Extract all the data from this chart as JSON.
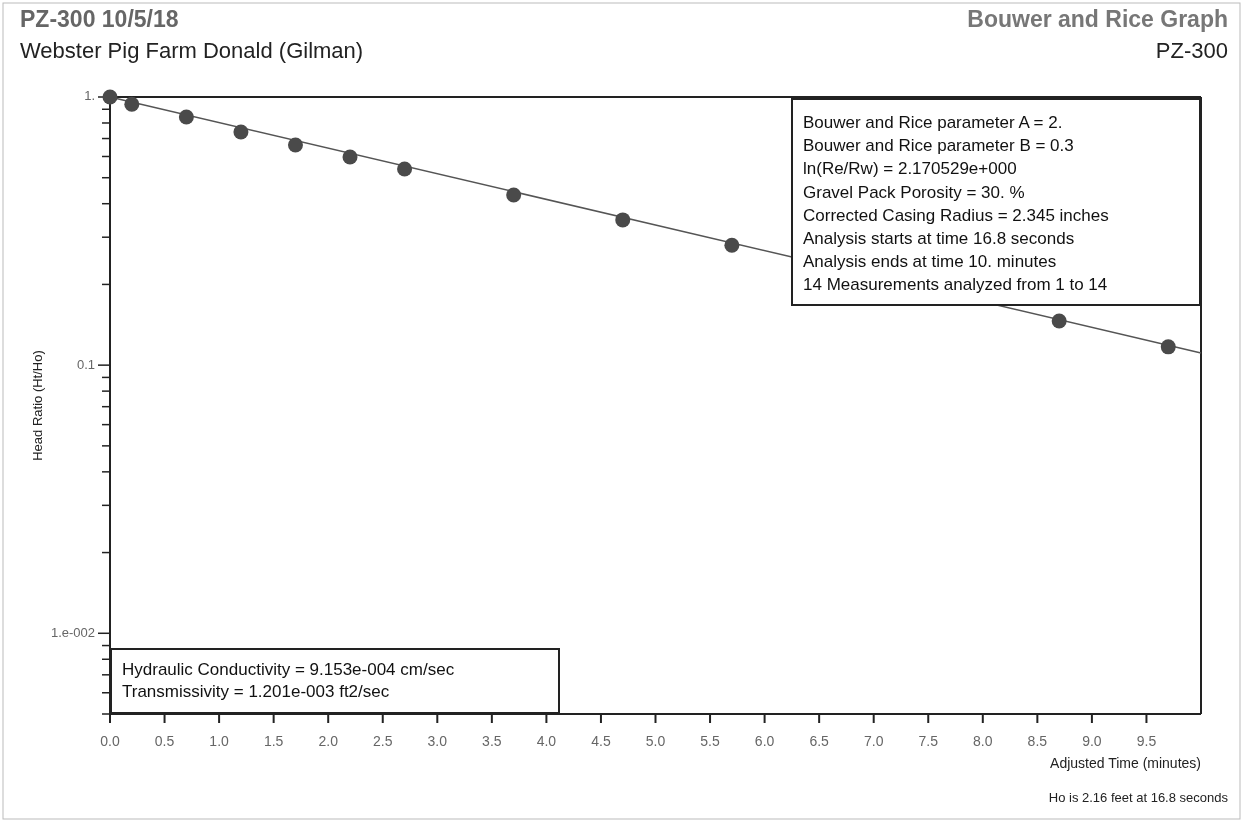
{
  "chart_data": {
    "type": "scatter",
    "title": "PZ-300 10/5/18",
    "subtitle": "Webster Pig Farm Donald (Gilman)",
    "xlabel": "Adjusted Time (minutes)",
    "ylabel": "Head Ratio (Ht/Ho)",
    "annotations": [
      "Bouwer and Rice Graph",
      "PZ-300",
      "Bouwer and Rice parameter A = 2.",
      "Bouwer and Rice parameter B = 0.3",
      "ln(Re/Rw) = 2.170529e+000",
      "Gravel Pack Porosity = 30. %",
      "Corrected Casing Radius = 2.345 inches",
      "Analysis starts at time 16.8 seconds",
      "Analysis ends at time 10. minutes",
      "14 Measurements analyzed from 1 to 14",
      "Hydraulic Conductivity = 9.153e-004 cm/sec",
      "Transmissivity = 1.201e-003 ft2/sec",
      "Ho is 2.16 feet at 16.8 seconds"
    ],
    "series": [
      {
        "color": "#4a4a4a",
        "marker": "circle",
        "x": [
          0,
          0.2,
          0.7,
          1.2,
          1.7,
          2.2,
          2.7,
          3.7,
          4.7,
          5.7,
          8.7,
          9.7
        ],
        "values": [
          1.0,
          0.94,
          0.842,
          0.74,
          0.662,
          0.597,
          0.539,
          0.431,
          0.348,
          0.28,
          0.146,
          0.117
        ]
      },
      {
        "type": "line",
        "color": "#555555",
        "x": [
          0,
          10
        ],
        "values": [
          1.0,
          0.111
        ]
      }
    ],
    "xlim": [
      0,
      10
    ],
    "ylim": [
      0.005,
      1
    ],
    "log": "y",
    "line_style": "solid",
    "xticks": [
      {
        "value": 0,
        "label": "0.0"
      },
      {
        "value": 0.5,
        "label": "0.5"
      },
      {
        "value": 1,
        "label": "1.0"
      },
      {
        "value": 1.5,
        "label": "1.5"
      },
      {
        "value": 2,
        "label": "2.0"
      },
      {
        "value": 2.5,
        "label": "2.5"
      },
      {
        "value": 3,
        "label": "3.0"
      },
      {
        "value": 3.5,
        "label": "3.5"
      },
      {
        "value": 4,
        "label": "4.0"
      },
      {
        "value": 4.5,
        "label": "4.5"
      },
      {
        "value": 5,
        "label": "5.0"
      },
      {
        "value": 5.5,
        "label": "5.5"
      },
      {
        "value": 6,
        "label": "6.0"
      },
      {
        "value": 6.5,
        "label": "6.5"
      },
      {
        "value": 7,
        "label": "7.0"
      },
      {
        "value": 7.5,
        "label": "7.5"
      },
      {
        "value": 8,
        "label": "8.0"
      },
      {
        "value": 8.5,
        "label": "8.5"
      },
      {
        "value": 9,
        "label": "9.0"
      },
      {
        "value": 9.5,
        "label": "9.5"
      }
    ],
    "yticks": [
      {
        "value": 1,
        "label": "1."
      },
      {
        "value": 0.9,
        "label": null
      },
      {
        "value": 0.8,
        "label": null
      },
      {
        "value": 0.7,
        "label": null
      },
      {
        "value": 0.6,
        "label": null
      },
      {
        "value": 0.5,
        "label": null
      },
      {
        "value": 0.4,
        "label": null
      },
      {
        "value": 0.3,
        "label": null
      },
      {
        "value": 0.2,
        "label": null
      },
      {
        "value": 0.1,
        "label": "0.1"
      },
      {
        "value": 0.09,
        "label": null
      },
      {
        "value": 0.08,
        "label": null
      },
      {
        "value": 0.07,
        "label": null
      },
      {
        "value": 0.06,
        "label": null
      },
      {
        "value": 0.05,
        "label": null
      },
      {
        "value": 0.04,
        "label": null
      },
      {
        "value": 0.03,
        "label": null
      },
      {
        "value": 0.02,
        "label": null
      },
      {
        "value": 0.01,
        "label": "1.e-002"
      },
      {
        "value": 0.009,
        "label": null
      },
      {
        "value": 0.008,
        "label": null
      },
      {
        "value": 0.007,
        "label": null
      },
      {
        "value": 0.006,
        "label": null
      },
      {
        "value": 0.005,
        "label": null
      }
    ]
  }
}
